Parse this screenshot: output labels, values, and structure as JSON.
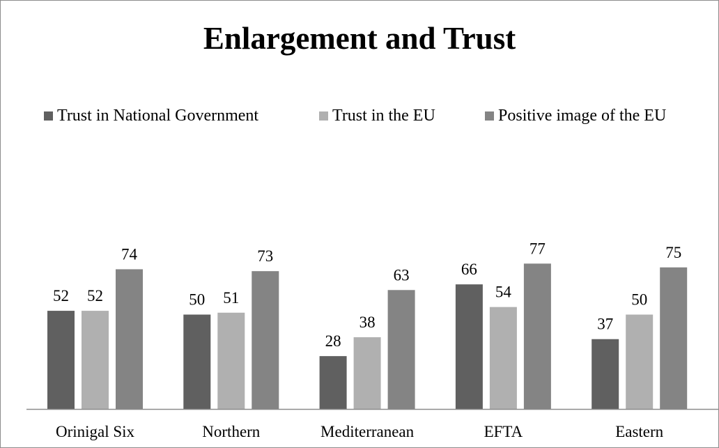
{
  "chart_data": {
    "type": "bar",
    "title": "Enlargement and Trust",
    "categories": [
      "Orinigal Six",
      "Northern",
      "Mediterranean",
      "EFTA",
      "Eastern"
    ],
    "series": [
      {
        "name": "Trust in National Government",
        "color": "#606060",
        "values": [
          52,
          50,
          28,
          66,
          37
        ]
      },
      {
        "name": "Trust in the EU",
        "color": "#b0b0b0",
        "values": [
          52,
          51,
          38,
          54,
          50
        ]
      },
      {
        "name": "Positive image of the EU",
        "color": "#848484",
        "values": [
          74,
          73,
          63,
          77,
          75
        ]
      }
    ],
    "ylim": [
      0,
      90
    ],
    "data_labels": true,
    "legend_position": "top",
    "grid": false
  }
}
